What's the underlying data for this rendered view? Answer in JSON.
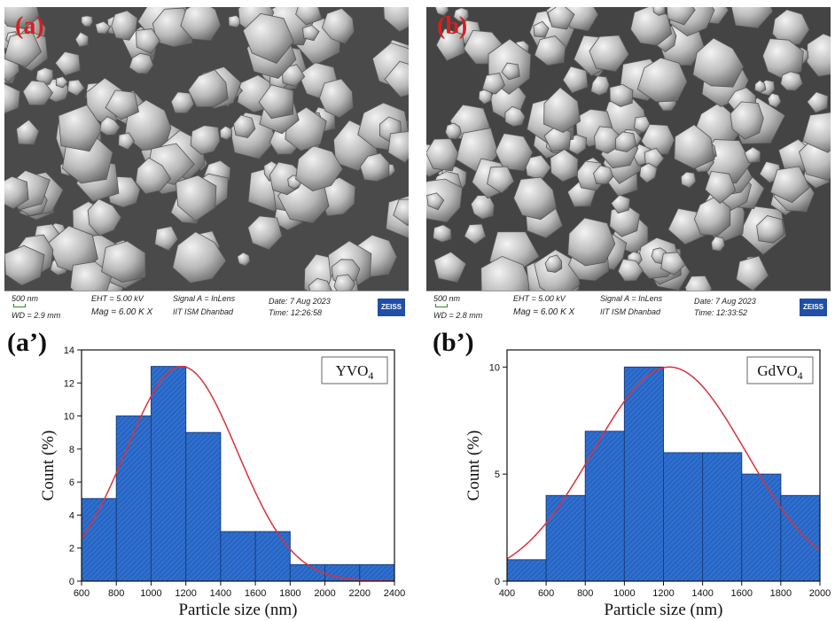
{
  "sem_panels": [
    {
      "tag": "(a)",
      "scale_text": "500 nm",
      "wd": "WD = 2.9 mm",
      "eht": "EHT = 5.00 kV",
      "mag": "Mag = 6.00 K X",
      "signal": "Signal A = InLens",
      "institute": "IIT ISM Dhanbad",
      "date": "Date: 7 Aug 2023",
      "time": "Time: 12:26:58",
      "logo": "ZEISS"
    },
    {
      "tag": "(b)",
      "scale_text": "500 nm",
      "wd": "WD = 2.8 mm",
      "eht": "EHT = 5.00 kV",
      "mag": "Mag = 6.00 K X",
      "signal": "Signal A = InLens",
      "institute": "IIT ISM Dhanbad",
      "date": "Date: 7 Aug 2023",
      "time": "Time: 12:33:52",
      "logo": "ZEISS"
    }
  ],
  "chart_data": [
    {
      "type": "bar",
      "panel_tag": "(a’)",
      "legend_label": "YVO",
      "legend_sub": "4",
      "xlabel": "Particle size (nm)",
      "ylabel": "Count (%)",
      "xlim": [
        600,
        2400
      ],
      "ylim": [
        0,
        14
      ],
      "xticks": [
        600,
        800,
        1000,
        1200,
        1400,
        1600,
        1800,
        2000,
        2200,
        2400
      ],
      "yticks": [
        0,
        2,
        4,
        6,
        8,
        10,
        12,
        14
      ],
      "bin_edges": [
        600,
        800,
        1000,
        1200,
        1400,
        1600,
        1800,
        2000,
        2200,
        2400
      ],
      "values": [
        5,
        10,
        13,
        9,
        3,
        3,
        1,
        1,
        1
      ],
      "fit": {
        "type": "gaussian",
        "mean": 1175,
        "sigma": 320,
        "peak": 13
      },
      "bar_color": "#2f6fd0",
      "fit_color": "#d9323c"
    },
    {
      "type": "bar",
      "panel_tag": "(b’)",
      "legend_label": "GdVO",
      "legend_sub": "4",
      "xlabel": "Particle size (nm)",
      "ylabel": "Count (%)",
      "xlim": [
        400,
        2000
      ],
      "ylim": [
        0,
        10.8
      ],
      "xticks": [
        400,
        600,
        800,
        1000,
        1200,
        1400,
        1600,
        1800,
        2000
      ],
      "yticks": [
        0,
        5,
        10
      ],
      "bin_edges": [
        400,
        600,
        800,
        1000,
        1200,
        1400,
        1600,
        1800,
        2000
      ],
      "values": [
        1,
        4,
        7,
        10,
        6,
        6,
        5,
        4
      ],
      "fit": {
        "type": "gaussian",
        "mean": 1230,
        "sigma": 390,
        "peak": 10
      },
      "bar_color": "#2f6fd0",
      "fit_color": "#d9323c"
    }
  ]
}
